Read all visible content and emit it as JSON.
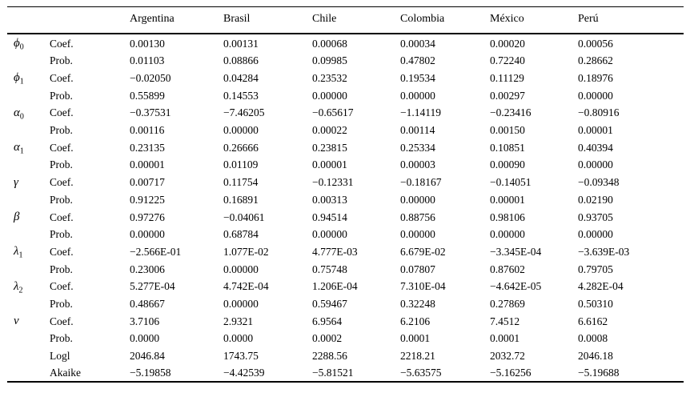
{
  "table": {
    "column_headers": [
      "Argentina",
      "Brasil",
      "Chile",
      "Colombia",
      "México",
      "Perú"
    ],
    "rows": [
      {
        "symbol": "ϕ",
        "sub": "0",
        "stat": "Coef.",
        "values": [
          "0.00130",
          "0.00131",
          "0.00068",
          "0.00034",
          "0.00020",
          "0.00056"
        ]
      },
      {
        "symbol": "",
        "sub": "",
        "stat": "Prob.",
        "values": [
          "0.01103",
          "0.08866",
          "0.09985",
          "0.47802",
          "0.72240",
          "0.28662"
        ]
      },
      {
        "symbol": "ϕ",
        "sub": "1",
        "stat": "Coef.",
        "values": [
          "−0.02050",
          "0.04284",
          "0.23532",
          "0.19534",
          "0.11129",
          "0.18976"
        ]
      },
      {
        "symbol": "",
        "sub": "",
        "stat": "Prob.",
        "values": [
          "0.55899",
          "0.14553",
          "0.00000",
          "0.00000",
          "0.00297",
          "0.00000"
        ]
      },
      {
        "symbol": "α",
        "sub": "0",
        "stat": "Coef.",
        "values": [
          "−0.37531",
          "−7.46205",
          "−0.65617",
          "−1.14119",
          "−0.23416",
          "−0.80916"
        ]
      },
      {
        "symbol": "",
        "sub": "",
        "stat": "Prob.",
        "values": [
          "0.00116",
          "0.00000",
          "0.00022",
          "0.00114",
          "0.00150",
          "0.00001"
        ]
      },
      {
        "symbol": "α",
        "sub": "1",
        "stat": "Coef.",
        "values": [
          "0.23135",
          "0.26666",
          "0.23815",
          "0.25334",
          "0.10851",
          "0.40394"
        ]
      },
      {
        "symbol": "",
        "sub": "",
        "stat": "Prob.",
        "values": [
          "0.00001",
          "0.01109",
          "0.00001",
          "0.00003",
          "0.00090",
          "0.00000"
        ]
      },
      {
        "symbol": "γ",
        "sub": "",
        "stat": "Coef.",
        "values": [
          "0.00717",
          "0.11754",
          "−0.12331",
          "−0.18167",
          "−0.14051",
          "−0.09348"
        ]
      },
      {
        "symbol": "",
        "sub": "",
        "stat": "Prob.",
        "values": [
          "0.91225",
          "0.16891",
          "0.00313",
          "0.00000",
          "0.00001",
          "0.02190"
        ]
      },
      {
        "symbol": "β",
        "sub": "",
        "stat": "Coef.",
        "values": [
          "0.97276",
          "−0.04061",
          "0.94514",
          "0.88756",
          "0.98106",
          "0.93705"
        ]
      },
      {
        "symbol": "",
        "sub": "",
        "stat": "Prob.",
        "values": [
          "0.00000",
          "0.68784",
          "0.00000",
          "0.00000",
          "0.00000",
          "0.00000"
        ]
      },
      {
        "symbol": "λ",
        "sub": "1",
        "stat": "Coef.",
        "values": [
          "−2.566E-01",
          "1.077E-02",
          "4.777E-03",
          "6.679E-02",
          "−3.345E-04",
          "−3.639E-03"
        ]
      },
      {
        "symbol": "",
        "sub": "",
        "stat": "Prob.",
        "values": [
          "0.23006",
          "0.00000",
          "0.75748",
          "0.07807",
          "0.87602",
          "0.79705"
        ]
      },
      {
        "symbol": "λ",
        "sub": "2",
        "stat": "Coef.",
        "values": [
          "5.277E-04",
          "4.742E-04",
          "1.206E-04",
          "7.310E-04",
          "−4.642E-05",
          "4.282E-04"
        ]
      },
      {
        "symbol": "",
        "sub": "",
        "stat": "Prob.",
        "values": [
          "0.48667",
          "0.00000",
          "0.59467",
          "0.32248",
          "0.27869",
          "0.50310"
        ]
      },
      {
        "symbol": "ν",
        "sub": "",
        "stat": "Coef.",
        "values": [
          "3.7106",
          "2.9321",
          "6.9564",
          "6.2106",
          "7.4512",
          "6.6162"
        ]
      },
      {
        "symbol": "",
        "sub": "",
        "stat": "Prob.",
        "values": [
          "0.0000",
          "0.0000",
          "0.0002",
          "0.0001",
          "0.0001",
          "0.0008"
        ]
      },
      {
        "symbol": "",
        "sub": "",
        "stat": "Logl",
        "values": [
          "2046.84",
          "1743.75",
          "2288.56",
          "2218.21",
          "2032.72",
          "2046.18"
        ]
      },
      {
        "symbol": "",
        "sub": "",
        "stat": "Akaike",
        "values": [
          "−5.19858",
          "−4.42539",
          "−5.81521",
          "−5.63575",
          "−5.16256",
          "−5.19688"
        ]
      }
    ]
  }
}
